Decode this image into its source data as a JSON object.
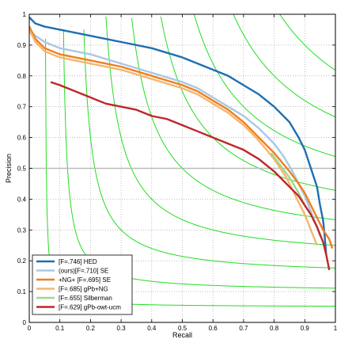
{
  "chart_data": {
    "type": "line",
    "xlabel": "Recall",
    "ylabel": "Precision",
    "xlim": [
      0,
      1
    ],
    "ylim": [
      0,
      1
    ],
    "xticks": [
      "0",
      "0.1",
      "0.2",
      "0.3",
      "0.4",
      "0.5",
      "0.6",
      "0.7",
      "0.8",
      "0.9",
      "1"
    ],
    "yticks": [
      "0",
      "0.1",
      "0.2",
      "0.3",
      "0.4",
      "0.5",
      "0.6",
      "0.7",
      "0.8",
      "0.9",
      "1"
    ],
    "grid": true,
    "legend_position": "bottom-left",
    "reference_line": {
      "y": 0.5,
      "color": "#bbbbbb"
    },
    "iso_f_curve_color": "#22dd22",
    "iso_f_values": [
      0.1,
      0.2,
      0.3,
      0.4,
      0.5,
      0.6,
      0.7,
      0.8,
      0.9
    ],
    "series": [
      {
        "name": "[F=.746] HED",
        "color": "#1f6fb0",
        "x": [
          0.0,
          0.02,
          0.05,
          0.1,
          0.15,
          0.2,
          0.3,
          0.4,
          0.5,
          0.55,
          0.6,
          0.65,
          0.7,
          0.75,
          0.8,
          0.85,
          0.88,
          0.9,
          0.92,
          0.94,
          0.95,
          0.96,
          0.965,
          0.97
        ],
        "y": [
          0.99,
          0.97,
          0.96,
          0.95,
          0.94,
          0.93,
          0.91,
          0.89,
          0.86,
          0.84,
          0.82,
          0.8,
          0.77,
          0.74,
          0.7,
          0.65,
          0.6,
          0.56,
          0.5,
          0.44,
          0.38,
          0.33,
          0.28,
          0.22
        ]
      },
      {
        "name": "(ours)[F=.710] SE",
        "color": "#a9c8e6",
        "x": [
          0.0,
          0.02,
          0.05,
          0.1,
          0.15,
          0.2,
          0.3,
          0.4,
          0.5,
          0.55,
          0.6,
          0.65,
          0.7,
          0.75,
          0.8,
          0.83,
          0.86,
          0.88,
          0.9,
          0.92,
          0.94,
          0.95
        ],
        "y": [
          0.95,
          0.93,
          0.91,
          0.89,
          0.88,
          0.87,
          0.84,
          0.81,
          0.78,
          0.76,
          0.73,
          0.7,
          0.67,
          0.63,
          0.58,
          0.54,
          0.49,
          0.45,
          0.41,
          0.36,
          0.31,
          0.28
        ]
      },
      {
        "name": "+NG+ [F=.695] SE",
        "color": "#f07f1e",
        "x": [
          0.0,
          0.02,
          0.05,
          0.1,
          0.15,
          0.2,
          0.3,
          0.4,
          0.5,
          0.55,
          0.6,
          0.65,
          0.7,
          0.75,
          0.8,
          0.85,
          0.88,
          0.9,
          0.92,
          0.94,
          0.96,
          0.98,
          0.99
        ],
        "y": [
          0.96,
          0.92,
          0.89,
          0.87,
          0.86,
          0.85,
          0.83,
          0.8,
          0.77,
          0.75,
          0.72,
          0.69,
          0.65,
          0.6,
          0.55,
          0.49,
          0.45,
          0.42,
          0.38,
          0.34,
          0.3,
          0.27,
          0.24
        ]
      },
      {
        "name": "[F=.685] gPb+NG",
        "color": "#f5b66e",
        "x": [
          0.0,
          0.02,
          0.05,
          0.1,
          0.15,
          0.2,
          0.3,
          0.4,
          0.5,
          0.55,
          0.6,
          0.65,
          0.7,
          0.75,
          0.8,
          0.84,
          0.86,
          0.88,
          0.9,
          0.92,
          0.94
        ],
        "y": [
          0.95,
          0.91,
          0.88,
          0.86,
          0.85,
          0.84,
          0.82,
          0.79,
          0.76,
          0.74,
          0.71,
          0.68,
          0.64,
          0.59,
          0.53,
          0.47,
          0.43,
          0.39,
          0.35,
          0.3,
          0.25
        ]
      },
      {
        "name": "[F=.655] Silberman",
        "color": "#9fd892",
        "x": [
          0.79,
          0.82,
          0.85,
          0.88,
          0.9,
          0.92
        ],
        "y": [
          0.55,
          0.51,
          0.47,
          0.42,
          0.38,
          0.35
        ]
      },
      {
        "name": "[F=.629] gPb-owt-ucm",
        "color": "#c0262a",
        "x": [
          0.07,
          0.1,
          0.15,
          0.2,
          0.25,
          0.3,
          0.35,
          0.4,
          0.45,
          0.5,
          0.55,
          0.6,
          0.65,
          0.7,
          0.75,
          0.8,
          0.85,
          0.88,
          0.9,
          0.92,
          0.94,
          0.96,
          0.97,
          0.98
        ],
        "y": [
          0.78,
          0.77,
          0.75,
          0.73,
          0.71,
          0.7,
          0.69,
          0.67,
          0.66,
          0.64,
          0.62,
          0.6,
          0.58,
          0.56,
          0.53,
          0.49,
          0.44,
          0.41,
          0.38,
          0.35,
          0.31,
          0.26,
          0.22,
          0.17
        ]
      }
    ]
  }
}
